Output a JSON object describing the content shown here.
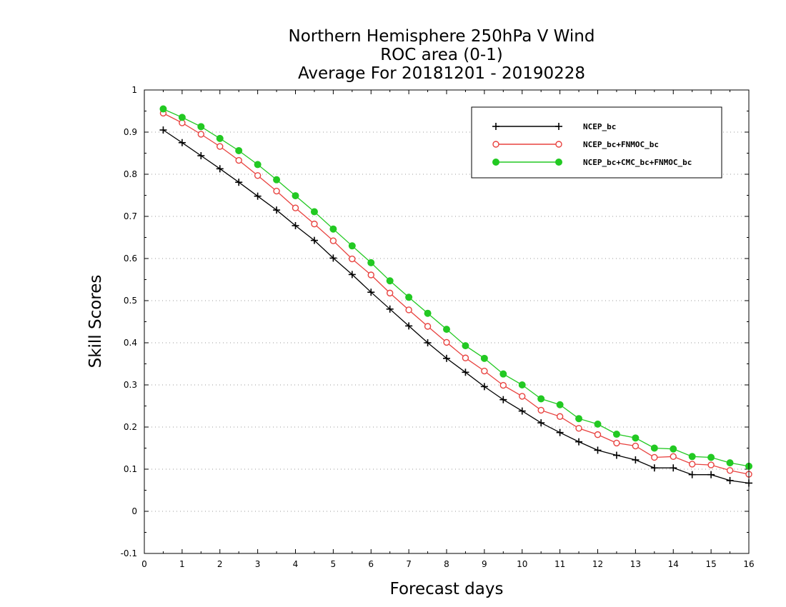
{
  "chart_data": {
    "type": "line",
    "title": [
      "Northern Hemisphere 250hPa V Wind",
      "ROC area (0-1)",
      "Average For 20181201 - 20190228"
    ],
    "xlabel": "Forecast days",
    "ylabel": "Skill Scores",
    "xlim": [
      0,
      16
    ],
    "ylim": [
      -0.1,
      1
    ],
    "xticks": [
      0,
      1,
      2,
      3,
      4,
      5,
      6,
      7,
      8,
      9,
      10,
      11,
      12,
      13,
      14,
      15,
      16
    ],
    "yticks": [
      -0.1,
      0,
      0.1,
      0.2,
      0.3,
      0.4,
      0.5,
      0.6,
      0.7,
      0.8,
      0.9,
      1
    ],
    "ytick_labels": [
      "-0.1",
      "0",
      "0.1",
      "0.2",
      "0.3",
      "0.4",
      "0.5",
      "0.6",
      "0.7",
      "0.8",
      "0.9",
      "1"
    ],
    "grid": "horizontal-dotted",
    "legend_position": "top-right",
    "x": [
      0.5,
      1,
      1.5,
      2,
      2.5,
      3,
      3.5,
      4,
      4.5,
      5,
      5.5,
      6,
      6.5,
      7,
      7.5,
      8,
      8.5,
      9,
      9.5,
      10,
      10.5,
      11,
      11.5,
      12,
      12.5,
      13,
      13.5,
      14,
      14.5,
      15,
      15.5,
      16
    ],
    "series": [
      {
        "name": "NCEP_bc",
        "color": "#000000",
        "marker": "plus",
        "values": [
          0.905,
          0.875,
          0.844,
          0.813,
          0.781,
          0.748,
          0.715,
          0.678,
          0.643,
          0.601,
          0.562,
          0.52,
          0.48,
          0.44,
          0.4,
          0.363,
          0.33,
          0.296,
          0.265,
          0.238,
          0.21,
          0.187,
          0.165,
          0.145,
          0.133,
          0.122,
          0.103,
          0.103,
          0.087,
          0.087,
          0.073,
          0.067
        ]
      },
      {
        "name": "NCEP_bc+FNMOC_bc",
        "color": "#e8423f",
        "marker": "open-circle",
        "values": [
          0.945,
          0.922,
          0.895,
          0.866,
          0.833,
          0.797,
          0.76,
          0.72,
          0.682,
          0.642,
          0.599,
          0.561,
          0.518,
          0.478,
          0.439,
          0.401,
          0.364,
          0.333,
          0.299,
          0.273,
          0.24,
          0.225,
          0.197,
          0.182,
          0.162,
          0.155,
          0.128,
          0.13,
          0.112,
          0.11,
          0.097,
          0.088
        ]
      },
      {
        "name": "NCEP_bc+CMC_bc+FNMOC_bc",
        "color": "#22c922",
        "marker": "filled-circle",
        "values": [
          0.955,
          0.935,
          0.913,
          0.885,
          0.856,
          0.823,
          0.787,
          0.749,
          0.711,
          0.67,
          0.63,
          0.59,
          0.547,
          0.508,
          0.47,
          0.432,
          0.393,
          0.363,
          0.326,
          0.3,
          0.267,
          0.253,
          0.22,
          0.207,
          0.183,
          0.174,
          0.15,
          0.148,
          0.13,
          0.128,
          0.115,
          0.107
        ]
      }
    ]
  }
}
